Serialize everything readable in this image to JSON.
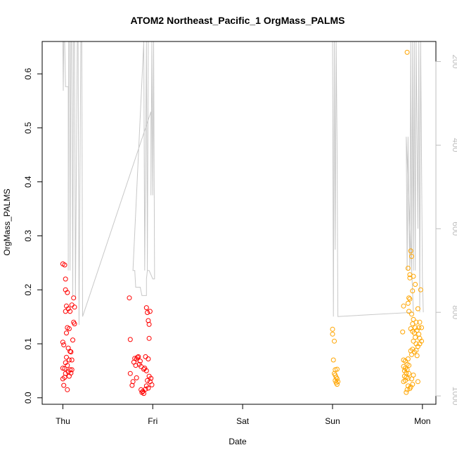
{
  "chart_data": {
    "type": "scatter",
    "title": "ATOM2 Northeast_Pacific_1 OrgMass_PALMS",
    "xlabel": "Date",
    "ylabel": "OrgMass_PALMS",
    "x_ticks": [
      "Thu",
      "Fri",
      "Sat",
      "Sun",
      "Mon"
    ],
    "xlim": [
      -0.23,
      4.15
    ],
    "ylim": [
      -0.012,
      0.66
    ],
    "y_ticks": [
      0.0,
      0.1,
      0.2,
      0.3,
      0.4,
      0.5,
      0.6
    ],
    "right_axis": {
      "label": "",
      "ticks": [
        200,
        400,
        600,
        800,
        1000
      ],
      "range_top_to_bottom": [
        152,
        1020
      ],
      "reversed": true,
      "color": "#bfbfbf"
    },
    "grid": false,
    "legend": "none",
    "colors": {
      "red_points": "#ff0000",
      "orange_points": "#ffa500",
      "pressure_line": "#c8c8c8"
    },
    "series": [
      {
        "color": "#ff0000",
        "points": [
          [
            0.0,
            0.248
          ],
          [
            0.02,
            0.246
          ],
          [
            0.03,
            0.22
          ],
          [
            0.03,
            0.2
          ],
          [
            0.05,
            0.195
          ],
          [
            0.04,
            0.17
          ],
          [
            0.06,
            0.165
          ],
          [
            0.03,
            0.16
          ],
          [
            0.08,
            0.16
          ],
          [
            0.1,
            0.172
          ],
          [
            0.12,
            0.185
          ],
          [
            0.13,
            0.168
          ],
          [
            0.12,
            0.14
          ],
          [
            0.13,
            0.137
          ],
          [
            0.05,
            0.13
          ],
          [
            0.07,
            0.128
          ],
          [
            0.04,
            0.12
          ],
          [
            0.11,
            0.107
          ],
          [
            0.0,
            0.103
          ],
          [
            0.01,
            0.098
          ],
          [
            0.06,
            0.092
          ],
          [
            0.08,
            0.086
          ],
          [
            0.09,
            0.085
          ],
          [
            0.04,
            0.075
          ],
          [
            0.07,
            0.07
          ],
          [
            0.1,
            0.07
          ],
          [
            0.03,
            0.065
          ],
          [
            0.05,
            0.06
          ],
          [
            0.0,
            0.055
          ],
          [
            0.02,
            0.054
          ],
          [
            0.08,
            0.052
          ],
          [
            0.1,
            0.052
          ],
          [
            0.06,
            0.048
          ],
          [
            0.09,
            0.046
          ],
          [
            0.03,
            0.045
          ],
          [
            0.07,
            0.04
          ],
          [
            0.02,
            0.038
          ],
          [
            0.0,
            0.035
          ],
          [
            0.01,
            0.023
          ],
          [
            0.05,
            0.015
          ],
          [
            0.74,
            0.185
          ],
          [
            0.93,
            0.167
          ],
          [
            0.97,
            0.16
          ],
          [
            0.94,
            0.158
          ],
          [
            0.95,
            0.143
          ],
          [
            0.96,
            0.136
          ],
          [
            0.75,
            0.108
          ],
          [
            0.96,
            0.11
          ],
          [
            0.83,
            0.075
          ],
          [
            0.8,
            0.073
          ],
          [
            0.84,
            0.076
          ],
          [
            0.92,
            0.076
          ],
          [
            0.95,
            0.072
          ],
          [
            0.82,
            0.072
          ],
          [
            0.86,
            0.068
          ],
          [
            0.79,
            0.066
          ],
          [
            0.85,
            0.062
          ],
          [
            0.81,
            0.06
          ],
          [
            0.87,
            0.058
          ],
          [
            0.9,
            0.053
          ],
          [
            0.93,
            0.05
          ],
          [
            0.91,
            0.055
          ],
          [
            0.75,
            0.045
          ],
          [
            0.96,
            0.04
          ],
          [
            0.98,
            0.036
          ],
          [
            0.82,
            0.037
          ],
          [
            0.78,
            0.03
          ],
          [
            0.94,
            0.032
          ],
          [
            0.97,
            0.03
          ],
          [
            0.99,
            0.024
          ],
          [
            0.77,
            0.023
          ],
          [
            0.93,
            0.022
          ],
          [
            0.95,
            0.018
          ],
          [
            0.92,
            0.016
          ],
          [
            0.87,
            0.015
          ],
          [
            0.89,
            0.012
          ],
          [
            0.9,
            0.008
          ],
          [
            0.88,
            0.01
          ]
        ]
      },
      {
        "color": "#ffa500",
        "points": [
          [
            3.0,
            0.127
          ],
          [
            3.0,
            0.118
          ],
          [
            3.02,
            0.105
          ],
          [
            3.01,
            0.07
          ],
          [
            3.03,
            0.052
          ],
          [
            3.05,
            0.053
          ],
          [
            3.02,
            0.045
          ],
          [
            3.03,
            0.042
          ],
          [
            3.04,
            0.038
          ],
          [
            3.05,
            0.035
          ],
          [
            3.03,
            0.032
          ],
          [
            3.06,
            0.03
          ],
          [
            3.04,
            0.028
          ],
          [
            3.05,
            0.025
          ],
          [
            3.83,
            0.64
          ],
          [
            3.87,
            0.272
          ],
          [
            3.88,
            0.262
          ],
          [
            3.84,
            0.24
          ],
          [
            3.86,
            0.228
          ],
          [
            3.9,
            0.225
          ],
          [
            3.86,
            0.222
          ],
          [
            3.92,
            0.21
          ],
          [
            3.98,
            0.2
          ],
          [
            3.89,
            0.198
          ],
          [
            3.85,
            0.185
          ],
          [
            3.84,
            0.175
          ],
          [
            3.86,
            0.183
          ],
          [
            3.79,
            0.17
          ],
          [
            3.95,
            0.165
          ],
          [
            3.85,
            0.16
          ],
          [
            3.88,
            0.155
          ],
          [
            3.9,
            0.145
          ],
          [
            3.93,
            0.14
          ],
          [
            3.97,
            0.14
          ],
          [
            3.89,
            0.137
          ],
          [
            3.92,
            0.13
          ],
          [
            3.96,
            0.13
          ],
          [
            3.99,
            0.13
          ],
          [
            3.87,
            0.128
          ],
          [
            3.94,
            0.125
          ],
          [
            3.89,
            0.123
          ],
          [
            3.78,
            0.122
          ],
          [
            3.91,
            0.12
          ],
          [
            3.96,
            0.118
          ],
          [
            3.92,
            0.112
          ],
          [
            3.97,
            0.11
          ],
          [
            3.9,
            0.105
          ],
          [
            3.99,
            0.105
          ],
          [
            3.93,
            0.1
          ],
          [
            3.97,
            0.1
          ],
          [
            3.95,
            0.095
          ],
          [
            3.89,
            0.09
          ],
          [
            3.93,
            0.088
          ],
          [
            3.87,
            0.087
          ],
          [
            3.91,
            0.085
          ],
          [
            3.88,
            0.08
          ],
          [
            3.94,
            0.078
          ],
          [
            3.84,
            0.072
          ],
          [
            3.79,
            0.07
          ],
          [
            3.81,
            0.068
          ],
          [
            3.83,
            0.062
          ],
          [
            3.85,
            0.06
          ],
          [
            3.79,
            0.058
          ],
          [
            3.81,
            0.055
          ],
          [
            3.83,
            0.052
          ],
          [
            3.8,
            0.05
          ],
          [
            3.82,
            0.046
          ],
          [
            3.85,
            0.045
          ],
          [
            3.9,
            0.042
          ],
          [
            3.8,
            0.04
          ],
          [
            3.82,
            0.038
          ],
          [
            3.84,
            0.036
          ],
          [
            3.88,
            0.035
          ],
          [
            3.81,
            0.032
          ],
          [
            3.79,
            0.03
          ],
          [
            3.95,
            0.03
          ],
          [
            3.89,
            0.025
          ],
          [
            3.84,
            0.022
          ],
          [
            3.87,
            0.02
          ],
          [
            3.86,
            0.017
          ],
          [
            3.83,
            0.015
          ],
          [
            3.82,
            0.01
          ]
        ]
      },
      {
        "color": "#c8c8c8",
        "axis": "right",
        "line": true,
        "points": [
          [
            0.0,
            150
          ],
          [
            0.005,
            270
          ],
          [
            0.01,
            150
          ],
          [
            0.02,
            150
          ],
          [
            0.03,
            260
          ],
          [
            0.06,
            260
          ],
          [
            0.06,
            700
          ],
          [
            0.065,
            150
          ],
          [
            0.075,
            150
          ],
          [
            0.08,
            700
          ],
          [
            0.09,
            150
          ],
          [
            0.1,
            150
          ],
          [
            0.11,
            760
          ],
          [
            0.12,
            150
          ],
          [
            0.13,
            150
          ],
          [
            0.14,
            770
          ],
          [
            0.16,
            150
          ],
          [
            0.17,
            150
          ],
          [
            0.18,
            830
          ],
          [
            0.2,
            150
          ],
          [
            0.21,
            150
          ],
          [
            0.22,
            810
          ],
          [
            0.22,
            810
          ],
          [
            0.98,
            320
          ],
          [
            0.98,
            320
          ],
          [
            0.98,
            520
          ],
          [
            0.99,
            150
          ],
          [
            1.0,
            520
          ],
          [
            1.01,
            150
          ],
          [
            1.02,
            700
          ],
          [
            1.02,
            700
          ],
          [
            1.02,
            720
          ],
          [
            1.0,
            720
          ],
          [
            0.96,
            700
          ],
          [
            0.94,
            700
          ],
          [
            0.93,
            720
          ],
          [
            0.93,
            760
          ],
          [
            0.9,
            760
          ],
          [
            0.88,
            760
          ],
          [
            0.86,
            740
          ],
          [
            0.84,
            740
          ],
          [
            0.81,
            740
          ],
          [
            0.8,
            700
          ],
          [
            0.78,
            700
          ],
          [
            0.9,
            150
          ],
          [
            0.91,
            700
          ],
          [
            0.93,
            150
          ],
          [
            0.94,
            700
          ],
          [
            0.95,
            150
          ],
          [
            3.0,
            150
          ],
          [
            3.01,
            810
          ],
          [
            3.02,
            150
          ],
          [
            3.03,
            650
          ],
          [
            3.04,
            150
          ],
          [
            3.05,
            400
          ],
          [
            3.06,
            810
          ],
          [
            3.9,
            800
          ],
          [
            3.82,
            380
          ],
          [
            3.83,
            700
          ],
          [
            3.84,
            380
          ],
          [
            3.85,
            580
          ],
          [
            3.86,
            700
          ],
          [
            3.87,
            150
          ],
          [
            3.88,
            700
          ],
          [
            3.89,
            150
          ],
          [
            3.9,
            700
          ],
          [
            3.91,
            150
          ],
          [
            3.92,
            700
          ],
          [
            3.93,
            150
          ],
          [
            3.95,
            600
          ],
          [
            3.96,
            150
          ],
          [
            3.97,
            800
          ],
          [
            3.98,
            150
          ],
          [
            4.0,
            720
          ],
          [
            4.01,
            800
          ]
        ]
      }
    ]
  }
}
